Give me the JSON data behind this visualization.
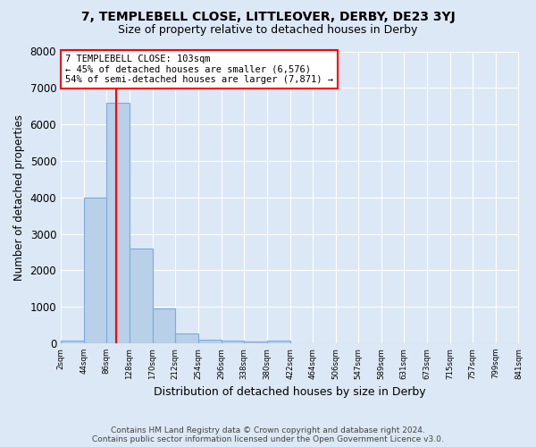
{
  "title": "7, TEMPLEBELL CLOSE, LITTLEOVER, DERBY, DE23 3YJ",
  "subtitle": "Size of property relative to detached houses in Derby",
  "xlabel": "Distribution of detached houses by size in Derby",
  "ylabel": "Number of detached properties",
  "footnote1": "Contains HM Land Registry data © Crown copyright and database right 2024.",
  "footnote2": "Contains public sector information licensed under the Open Government Licence v3.0.",
  "annotation_line1": "7 TEMPLEBELL CLOSE: 103sqm",
  "annotation_line2": "← 45% of detached houses are smaller (6,576)",
  "annotation_line3": "54% of semi-detached houses are larger (7,871) →",
  "bin_edges": [
    2,
    44,
    86,
    128,
    170,
    212,
    254,
    296,
    338,
    380,
    422,
    464,
    506,
    547,
    589,
    631,
    673,
    715,
    757,
    799,
    841
  ],
  "bar_heights": [
    70,
    4000,
    6600,
    2600,
    950,
    280,
    105,
    70,
    55,
    60,
    0,
    0,
    0,
    0,
    0,
    0,
    0,
    0,
    0,
    0
  ],
  "bar_color": "#b8d0e8",
  "bar_edge_color": "#7aabe0",
  "red_line_x": 103,
  "ylim": [
    0,
    8000
  ],
  "background_color": "#dce8f5",
  "plot_background": "#dce8f5"
}
